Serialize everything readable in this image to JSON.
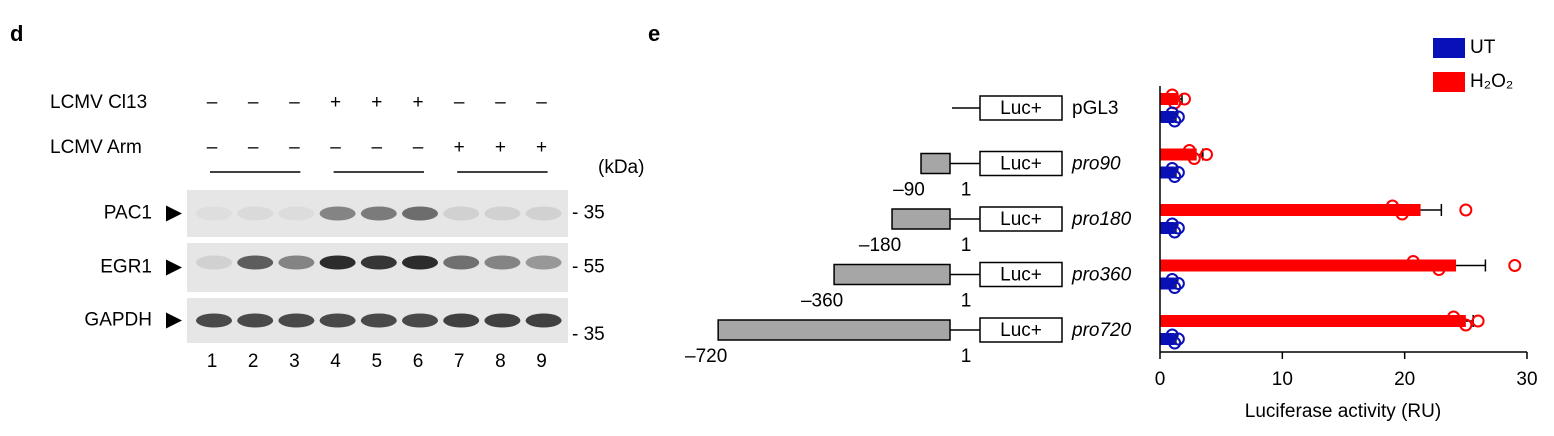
{
  "panel_labels": [
    "d",
    "e"
  ],
  "blot": {
    "conditions": [
      {
        "name": "LCMV Cl13",
        "signs": [
          "–",
          "–",
          "–",
          "+",
          "+",
          "+",
          "–",
          "–",
          "–"
        ]
      },
      {
        "name": "LCMV Arm",
        "signs": [
          "–",
          "–",
          "–",
          "–",
          "–",
          "–",
          "+",
          "+",
          "+"
        ]
      }
    ],
    "unit": "(kDa)",
    "rows": [
      {
        "name": "PAC1",
        "marker": "- 35"
      },
      {
        "name": "EGR1",
        "marker": "- 55"
      },
      {
        "name": "GAPDH",
        "marker": "- 35"
      }
    ],
    "lanes": [
      1,
      2,
      3,
      4,
      5,
      6,
      7,
      8,
      9
    ]
  },
  "chart_data": {
    "type": "bar",
    "orientation": "horizontal",
    "categories": [
      "pGL3",
      "pro90",
      "pro180",
      "pro360",
      "pro720"
    ],
    "constructs": [
      {
        "luc": "Luc+",
        "start": null,
        "end": null
      },
      {
        "luc": "Luc+",
        "start": {
          "value": -90,
          "label": "–90"
        },
        "end": 1
      },
      {
        "luc": "Luc+",
        "start": {
          "value": -180,
          "label": "–180"
        },
        "end": 1
      },
      {
        "luc": "Luc+",
        "start": {
          "value": -360,
          "label": "–360"
        },
        "end": 1
      },
      {
        "luc": "Luc+",
        "start": {
          "value": -720,
          "label": "–720"
        },
        "end": 1
      }
    ],
    "series": [
      {
        "name": "H₂O₂",
        "color": "#ff0000",
        "values": [
          1.5,
          3.0,
          21.3,
          24.2,
          25.0
        ],
        "errors": [
          0.3,
          0.5,
          1.7,
          2.4,
          0.6
        ],
        "points": [
          [
            1.0,
            1.2,
            2.0
          ],
          [
            2.4,
            2.8,
            3.8
          ],
          [
            19.0,
            19.8,
            25.0
          ],
          [
            20.7,
            22.8,
            29.0
          ],
          [
            24.0,
            25.0,
            26.0
          ]
        ]
      },
      {
        "name": "UT",
        "color": "#0a10b8",
        "values": [
          1.2,
          1.2,
          1.2,
          1.2,
          1.2
        ],
        "errors": [
          0.1,
          0.1,
          0.1,
          0.1,
          0.1
        ],
        "points": [
          [
            1.0,
            1.2,
            1.5
          ],
          [
            1.0,
            1.2,
            1.5
          ],
          [
            1.0,
            1.2,
            1.5
          ],
          [
            1.0,
            1.2,
            1.5
          ],
          [
            1.0,
            1.2,
            1.5
          ]
        ]
      }
    ],
    "xlim": [
      0,
      30
    ],
    "xticks": [
      0,
      10,
      20,
      30
    ],
    "xlabel": "Luciferase activity (RU)",
    "legend": "top-right"
  }
}
